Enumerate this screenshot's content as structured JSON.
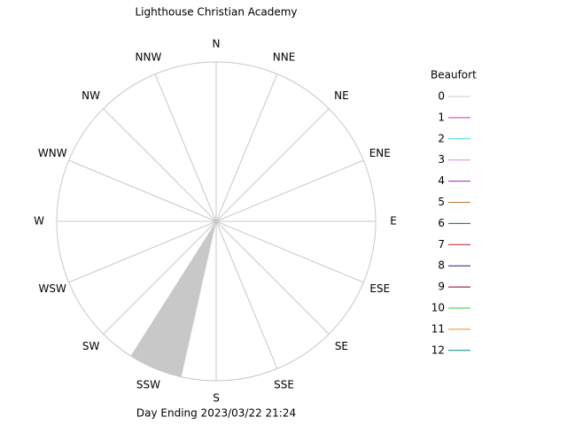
{
  "chart_data": {
    "type": "windrose",
    "title": "Lighthouse Christian Academy",
    "footer": "Day Ending 2023/03/22 21:24",
    "legend_title": "Beaufort",
    "categories": [
      "N",
      "NNE",
      "NE",
      "ENE",
      "E",
      "ESE",
      "SE",
      "SSE",
      "S",
      "SSW",
      "SW",
      "WSW",
      "W",
      "WNW",
      "NW",
      "NNW"
    ],
    "rlim": [
      0,
      100
    ],
    "series": [
      {
        "name": "0",
        "color": "#c8c8c8",
        "values": [
          0,
          0,
          0,
          0,
          0,
          0,
          0,
          0,
          0,
          100,
          0,
          0,
          0,
          0,
          0,
          0
        ]
      },
      {
        "name": "1",
        "color": "#cc33cc",
        "values": [
          0,
          0,
          0,
          0,
          0,
          0,
          0,
          0,
          0,
          0,
          0,
          0,
          0,
          0,
          0,
          0
        ]
      },
      {
        "name": "2",
        "color": "#33dddd",
        "values": [
          0,
          0,
          0,
          0,
          0,
          0,
          0,
          0,
          0,
          0,
          0,
          0,
          0,
          0,
          0,
          0
        ]
      },
      {
        "name": "3",
        "color": "#dd88cc",
        "values": [
          0,
          0,
          0,
          0,
          0,
          0,
          0,
          0,
          0,
          0,
          0,
          0,
          0,
          0,
          0,
          0
        ]
      },
      {
        "name": "4",
        "color": "#883399",
        "values": [
          0,
          0,
          0,
          0,
          0,
          0,
          0,
          0,
          0,
          0,
          0,
          0,
          0,
          0,
          0,
          0
        ]
      },
      {
        "name": "5",
        "color": "#bb7733",
        "values": [
          0,
          0,
          0,
          0,
          0,
          0,
          0,
          0,
          0,
          0,
          0,
          0,
          0,
          0,
          0,
          0
        ]
      },
      {
        "name": "6",
        "color": "#006688",
        "values": [
          0,
          0,
          0,
          0,
          0,
          0,
          0,
          0,
          0,
          0,
          0,
          0,
          0,
          0,
          0,
          0
        ]
      },
      {
        "name": "7",
        "color": "#aa2222",
        "values": [
          0,
          0,
          0,
          0,
          0,
          0,
          0,
          0,
          0,
          0,
          0,
          0,
          0,
          0,
          0,
          0
        ]
      },
      {
        "name": "8",
        "color": "#222266",
        "values": [
          0,
          0,
          0,
          0,
          0,
          0,
          0,
          0,
          0,
          0,
          0,
          0,
          0,
          0,
          0,
          0
        ]
      },
      {
        "name": "9",
        "color": "#880022",
        "values": [
          0,
          0,
          0,
          0,
          0,
          0,
          0,
          0,
          0,
          0,
          0,
          0,
          0,
          0,
          0,
          0
        ]
      },
      {
        "name": "10",
        "color": "#33cc33",
        "values": [
          0,
          0,
          0,
          0,
          0,
          0,
          0,
          0,
          0,
          0,
          0,
          0,
          0,
          0,
          0,
          0
        ]
      },
      {
        "name": "11",
        "color": "#dd9922",
        "values": [
          0,
          0,
          0,
          0,
          0,
          0,
          0,
          0,
          0,
          0,
          0,
          0,
          0,
          0,
          0,
          0
        ]
      },
      {
        "name": "12",
        "color": "#008888",
        "values": [
          0,
          0,
          0,
          0,
          0,
          0,
          0,
          0,
          0,
          0,
          0,
          0,
          0,
          0,
          0,
          0
        ]
      }
    ]
  }
}
